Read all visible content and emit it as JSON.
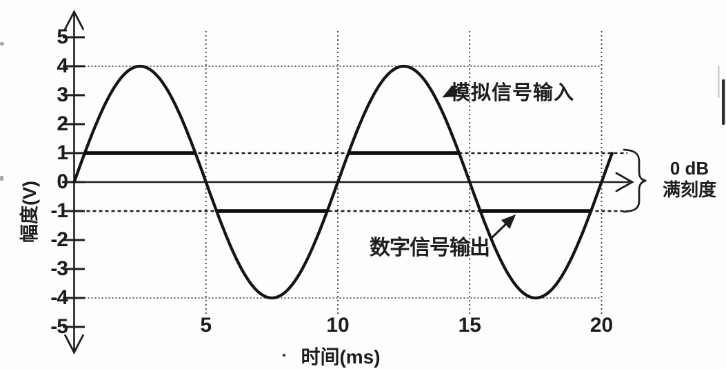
{
  "figure": {
    "y_axis_label": "幅度(V)",
    "x_axis_label": "时间(ms)",
    "analog_label": "模拟信号输入",
    "digital_label": "数字信号输出",
    "annotation_line1": "0 dB",
    "annotation_line2": "满刻度",
    "ink_color": "#1d1d1d"
  },
  "chart_data": {
    "type": "line",
    "title": "",
    "xlabel": "时间(ms)",
    "ylabel": "幅度(V)",
    "xlim": [
      0,
      20
    ],
    "ylim": [
      -5,
      5
    ],
    "x_ticks": [
      5,
      10,
      15,
      20
    ],
    "y_ticks": [
      5,
      4,
      3,
      2,
      1,
      0,
      -1,
      -2,
      -3,
      -4,
      -5
    ],
    "grid": "dashed vertical lines at each x tick; dotted horizontal reference lines",
    "legend_position": "none (inline arrow callouts)",
    "series": [
      {
        "name": "模拟信号输入",
        "shape": "sine",
        "amplitude_V": 4,
        "period_ms": 10,
        "start": "0 V rising at t=0",
        "x_range_ms": [
          0,
          20.4
        ],
        "peaks_ms": [
          2.5,
          12.5
        ],
        "troughs_ms": [
          7.5,
          17.5
        ]
      },
      {
        "name": "数字信号输出",
        "shape": "clipped",
        "clip_level_V": 1,
        "segments": [
          {
            "level_V": 1,
            "t_ms": [
              0.4,
              4.6
            ]
          },
          {
            "level_V": -1,
            "t_ms": [
              5.4,
              9.6
            ]
          },
          {
            "level_V": 1,
            "t_ms": [
              10.4,
              14.6
            ]
          },
          {
            "level_V": -1,
            "t_ms": [
              15.4,
              19.6
            ]
          }
        ]
      }
    ],
    "reference_lines": {
      "horizontal_dotted_V": [
        4,
        1,
        -1,
        -4
      ],
      "vertical_dashed_ms": [
        5,
        10,
        15,
        20
      ]
    },
    "annotations": [
      {
        "text": "模拟信号输入",
        "arrow_points_to": "sine curve near t=13.5 ms"
      },
      {
        "text": "数字信号输出",
        "arrow_points_to": "-1 V clipped segment near t=16.5 ms"
      },
      {
        "text": "0 dB 满刻度",
        "meaning": "brace spanning -1 V to +1 V at right of x-axis arrow"
      }
    ]
  }
}
